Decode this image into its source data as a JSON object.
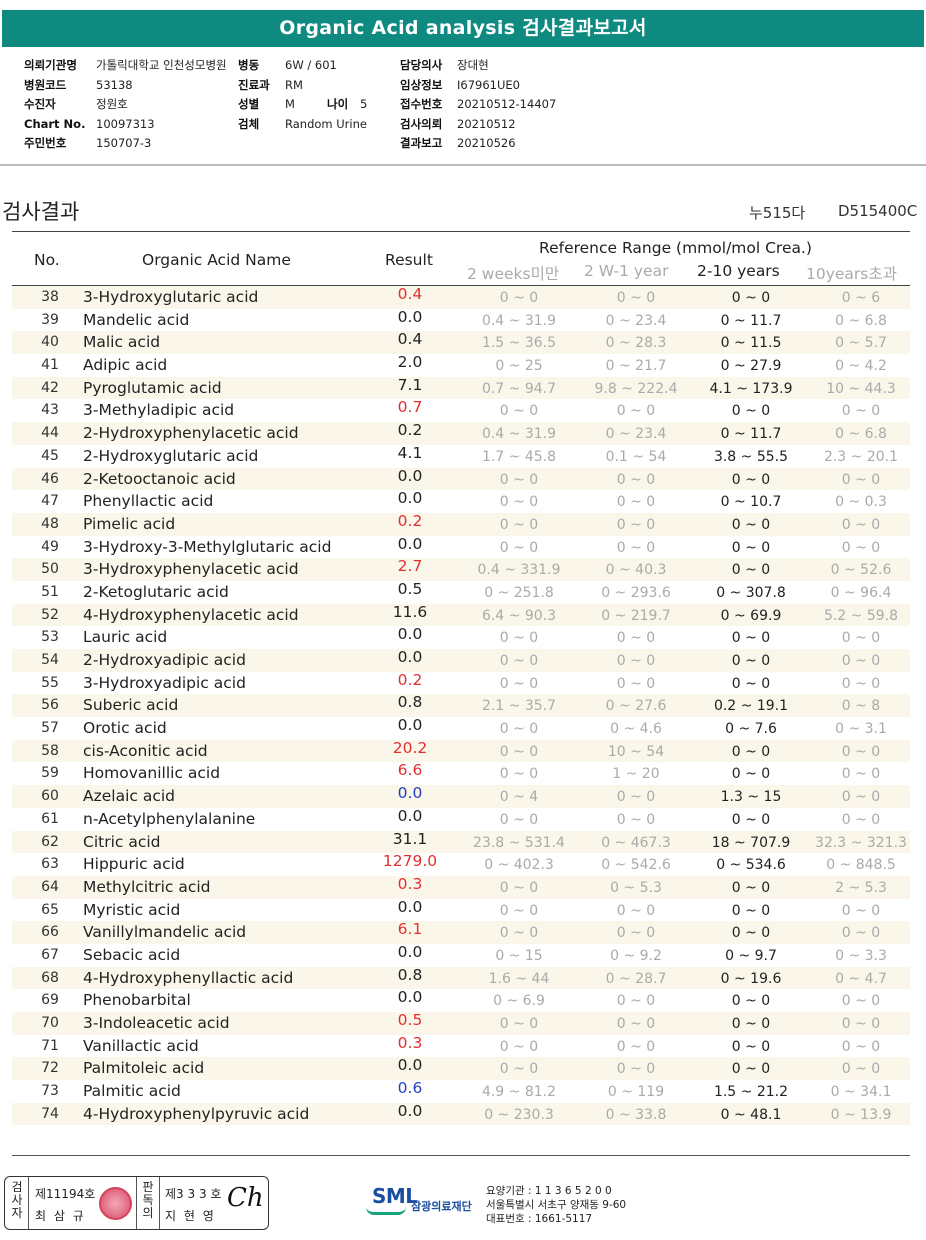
{
  "title": "Organic Acid analysis 검사결과보고서",
  "info": {
    "left": [
      {
        "label": "의뢰기관명",
        "value": "가톨릭대학교 인천성모병원"
      },
      {
        "label": "병원코드",
        "value": "53138"
      },
      {
        "label": "수진자",
        "value": "정원호"
      },
      {
        "label": "Chart No.",
        "value": "10097313"
      },
      {
        "label": "주민번호",
        "value": "150707-3"
      }
    ],
    "mid": [
      {
        "label": "병동",
        "value": "6W / 601"
      },
      {
        "label": "진료과",
        "value": "RM"
      },
      {
        "label": "성별",
        "value": "M",
        "label2": "나이",
        "value2": "5"
      },
      {
        "label": "검체",
        "value": "Random Urine"
      }
    ],
    "right": [
      {
        "label": "담당의사",
        "value": "장대현"
      },
      {
        "label": "임상정보",
        "value": "I67961UE0"
      },
      {
        "label": "접수번호",
        "value": "20210512-14407"
      },
      {
        "label": "검사의뢰",
        "value": "20210512"
      },
      {
        "label": "결과보고",
        "value": "20210526"
      }
    ]
  },
  "section_title": "검사결과",
  "sample_no": "누515다",
  "sample_id": "D515400C",
  "table": {
    "headers": {
      "no": "No.",
      "name": "Organic Acid Name",
      "result": "Result",
      "reference": "Reference Range (mmol/mol Crea.)",
      "ranges": [
        "2 weeks미만",
        "2 W-1 year",
        "2-10 years",
        "10years초과"
      ]
    },
    "colors": {
      "high": "#e03030",
      "low": "#2040c0",
      "normal": "#222222"
    },
    "rows": [
      {
        "no": "38",
        "name": "3-Hydroxyglutaric acid",
        "result": "0.4",
        "flag": "high",
        "r1": "0 ~ 0",
        "r2": "0 ~ 0",
        "r3": "0 ~ 0",
        "r4": "0 ~ 6"
      },
      {
        "no": "39",
        "name": "Mandelic acid",
        "result": "0.0",
        "flag": "normal",
        "r1": "0.4 ~ 31.9",
        "r2": "0 ~ 23.4",
        "r3": "0 ~ 11.7",
        "r4": "0 ~ 6.8"
      },
      {
        "no": "40",
        "name": "Malic acid",
        "result": "0.4",
        "flag": "normal",
        "r1": "1.5 ~ 36.5",
        "r2": "0 ~ 28.3",
        "r3": "0 ~ 11.5",
        "r4": "0 ~ 5.7"
      },
      {
        "no": "41",
        "name": "Adipic acid",
        "result": "2.0",
        "flag": "normal",
        "r1": "0 ~ 25",
        "r2": "0 ~ 21.7",
        "r3": "0 ~ 27.9",
        "r4": "0 ~ 4.2"
      },
      {
        "no": "42",
        "name": "Pyroglutamic acid",
        "result": "7.1",
        "flag": "normal",
        "r1": "0.7 ~ 94.7",
        "r2": "9.8 ~ 222.4",
        "r3": "4.1 ~ 173.9",
        "r4": "10 ~ 44.3"
      },
      {
        "no": "43",
        "name": "3-Methyladipic acid",
        "result": "0.7",
        "flag": "high",
        "r1": "0 ~ 0",
        "r2": "0 ~ 0",
        "r3": "0 ~ 0",
        "r4": "0 ~ 0"
      },
      {
        "no": "44",
        "name": "2-Hydroxyphenylacetic acid",
        "result": "0.2",
        "flag": "normal",
        "r1": "0.4 ~ 31.9",
        "r2": "0 ~ 23.4",
        "r3": "0 ~ 11.7",
        "r4": "0 ~ 6.8"
      },
      {
        "no": "45",
        "name": "2-Hydroxyglutaric acid",
        "result": "4.1",
        "flag": "normal",
        "r1": "1.7 ~ 45.8",
        "r2": "0.1 ~ 54",
        "r3": "3.8 ~ 55.5",
        "r4": "2.3 ~ 20.1"
      },
      {
        "no": "46",
        "name": "2-Ketooctanoic acid",
        "result": "0.0",
        "flag": "normal",
        "r1": "0 ~ 0",
        "r2": "0 ~ 0",
        "r3": "0 ~ 0",
        "r4": "0 ~ 0"
      },
      {
        "no": "47",
        "name": "Phenyllactic acid",
        "result": "0.0",
        "flag": "normal",
        "r1": "0 ~ 0",
        "r2": "0 ~ 0",
        "r3": "0 ~ 10.7",
        "r4": "0 ~ 0.3"
      },
      {
        "no": "48",
        "name": "Pimelic acid",
        "result": "0.2",
        "flag": "high",
        "r1": "0 ~ 0",
        "r2": "0 ~ 0",
        "r3": "0 ~ 0",
        "r4": "0 ~ 0"
      },
      {
        "no": "49",
        "name": "3-Hydroxy-3-Methylglutaric acid",
        "result": "0.0",
        "flag": "normal",
        "r1": "0 ~ 0",
        "r2": "0 ~ 0",
        "r3": "0 ~ 0",
        "r4": "0 ~ 0"
      },
      {
        "no": "50",
        "name": "3-Hydroxyphenylacetic acid",
        "result": "2.7",
        "flag": "high",
        "r1": "0.4 ~ 331.9",
        "r2": "0 ~ 40.3",
        "r3": "0 ~ 0",
        "r4": "0 ~ 52.6"
      },
      {
        "no": "51",
        "name": "2-Ketoglutaric acid",
        "result": "0.5",
        "flag": "normal",
        "r1": "0 ~ 251.8",
        "r2": "0 ~ 293.6",
        "r3": "0 ~ 307.8",
        "r4": "0 ~ 96.4"
      },
      {
        "no": "52",
        "name": "4-Hydroxyphenylacetic acid",
        "result": "11.6",
        "flag": "normal",
        "r1": "6.4 ~ 90.3",
        "r2": "0 ~ 219.7",
        "r3": "0 ~ 69.9",
        "r4": "5.2 ~ 59.8"
      },
      {
        "no": "53",
        "name": "Lauric acid",
        "result": "0.0",
        "flag": "normal",
        "r1": "0 ~ 0",
        "r2": "0 ~ 0",
        "r3": "0 ~ 0",
        "r4": "0 ~ 0"
      },
      {
        "no": "54",
        "name": "2-Hydroxyadipic acid",
        "result": "0.0",
        "flag": "normal",
        "r1": "0 ~ 0",
        "r2": "0 ~ 0",
        "r3": "0 ~ 0",
        "r4": "0 ~ 0"
      },
      {
        "no": "55",
        "name": "3-Hydroxyadipic acid",
        "result": "0.2",
        "flag": "high",
        "r1": "0 ~ 0",
        "r2": "0 ~ 0",
        "r3": "0 ~ 0",
        "r4": "0 ~ 0"
      },
      {
        "no": "56",
        "name": "Suberic acid",
        "result": "0.8",
        "flag": "normal",
        "r1": "2.1 ~ 35.7",
        "r2": "0 ~ 27.6",
        "r3": "0.2 ~ 19.1",
        "r4": "0 ~ 8"
      },
      {
        "no": "57",
        "name": "Orotic acid",
        "result": "0.0",
        "flag": "normal",
        "r1": "0 ~ 0",
        "r2": "0 ~ 4.6",
        "r3": "0 ~ 7.6",
        "r4": "0 ~ 3.1"
      },
      {
        "no": "58",
        "name": "cis-Aconitic acid",
        "result": "20.2",
        "flag": "high",
        "r1": "0 ~ 0",
        "r2": "10 ~ 54",
        "r3": "0 ~ 0",
        "r4": "0 ~ 0"
      },
      {
        "no": "59",
        "name": "Homovanillic acid",
        "result": "6.6",
        "flag": "high",
        "r1": "0 ~ 0",
        "r2": "1 ~ 20",
        "r3": "0 ~ 0",
        "r4": "0 ~ 0"
      },
      {
        "no": "60",
        "name": "Azelaic acid",
        "result": "0.0",
        "flag": "low",
        "r1": "0 ~ 4",
        "r2": "0 ~ 0",
        "r3": "1.3 ~ 15",
        "r4": "0 ~ 0"
      },
      {
        "no": "61",
        "name": "n-Acetylphenylalanine",
        "result": "0.0",
        "flag": "normal",
        "r1": "0 ~ 0",
        "r2": "0 ~ 0",
        "r3": "0 ~ 0",
        "r4": "0 ~ 0"
      },
      {
        "no": "62",
        "name": "Citric acid",
        "result": "31.1",
        "flag": "normal",
        "r1": "23.8 ~ 531.4",
        "r2": "0 ~ 467.3",
        "r3": "18 ~ 707.9",
        "r4": "32.3 ~ 321.3"
      },
      {
        "no": "63",
        "name": "Hippuric acid",
        "result": "1279.0",
        "flag": "high",
        "r1": "0 ~ 402.3",
        "r2": "0 ~ 542.6",
        "r3": "0 ~ 534.6",
        "r4": "0 ~ 848.5"
      },
      {
        "no": "64",
        "name": "Methylcitric acid",
        "result": "0.3",
        "flag": "high",
        "r1": "0 ~ 0",
        "r2": "0 ~ 5.3",
        "r3": "0 ~ 0",
        "r4": "2 ~ 5.3"
      },
      {
        "no": "65",
        "name": "Myristic acid",
        "result": "0.0",
        "flag": "normal",
        "r1": "0 ~ 0",
        "r2": "0 ~ 0",
        "r3": "0 ~ 0",
        "r4": "0 ~ 0"
      },
      {
        "no": "66",
        "name": "Vanillylmandelic acid",
        "result": "6.1",
        "flag": "high",
        "r1": "0 ~ 0",
        "r2": "0 ~ 0",
        "r3": "0 ~ 0",
        "r4": "0 ~ 0"
      },
      {
        "no": "67",
        "name": "Sebacic acid",
        "result": "0.0",
        "flag": "normal",
        "r1": "0 ~ 15",
        "r2": "0 ~ 9.2",
        "r3": "0 ~ 9.7",
        "r4": "0 ~ 3.3"
      },
      {
        "no": "68",
        "name": "4-Hydroxyphenyllactic acid",
        "result": "0.8",
        "flag": "normal",
        "r1": "1.6 ~ 44",
        "r2": "0 ~ 28.7",
        "r3": "0 ~ 19.6",
        "r4": "0 ~ 4.7"
      },
      {
        "no": "69",
        "name": "Phenobarbital",
        "result": "0.0",
        "flag": "normal",
        "r1": "0 ~ 6.9",
        "r2": "0 ~ 0",
        "r3": "0 ~ 0",
        "r4": "0 ~ 0"
      },
      {
        "no": "70",
        "name": "3-Indoleacetic acid",
        "result": "0.5",
        "flag": "high",
        "r1": "0 ~ 0",
        "r2": "0 ~ 0",
        "r3": "0 ~ 0",
        "r4": "0 ~ 0"
      },
      {
        "no": "71",
        "name": "Vanillactic acid",
        "result": "0.3",
        "flag": "high",
        "r1": "0 ~ 0",
        "r2": "0 ~ 0",
        "r3": "0 ~ 0",
        "r4": "0 ~ 0"
      },
      {
        "no": "72",
        "name": "Palmitoleic acid",
        "result": "0.0",
        "flag": "normal",
        "r1": "0 ~ 0",
        "r2": "0 ~ 0",
        "r3": "0 ~ 0",
        "r4": "0 ~ 0"
      },
      {
        "no": "73",
        "name": "Palmitic acid",
        "result": "0.6",
        "flag": "low",
        "r1": "4.9 ~ 81.2",
        "r2": "0 ~ 119",
        "r3": "1.5 ~ 21.2",
        "r4": "0 ~ 34.1"
      },
      {
        "no": "74",
        "name": "4-Hydroxyphenylpyruvic acid",
        "result": "0.0",
        "flag": "normal",
        "r1": "0 ~ 230.3",
        "r2": "0 ~ 33.8",
        "r3": "0 ~ 48.1",
        "r4": "0 ~ 13.9"
      }
    ]
  },
  "footer": {
    "inspector_label": "검사자",
    "inspector_license": "제11194호",
    "inspector_name": "최 삼 규",
    "reviewer_label": "판독의",
    "reviewer_license": "제3 3 3 호",
    "reviewer_name": "지 현 영",
    "signature": "Ch",
    "logo": "SML",
    "org_name": "삼광의료재단",
    "org_code": "요양기관 : 1 1 3 6 5 2 0 0",
    "address": "서울특별시 서초구 양재동 9-60",
    "phone": "대표번호 : 1661-5117"
  }
}
